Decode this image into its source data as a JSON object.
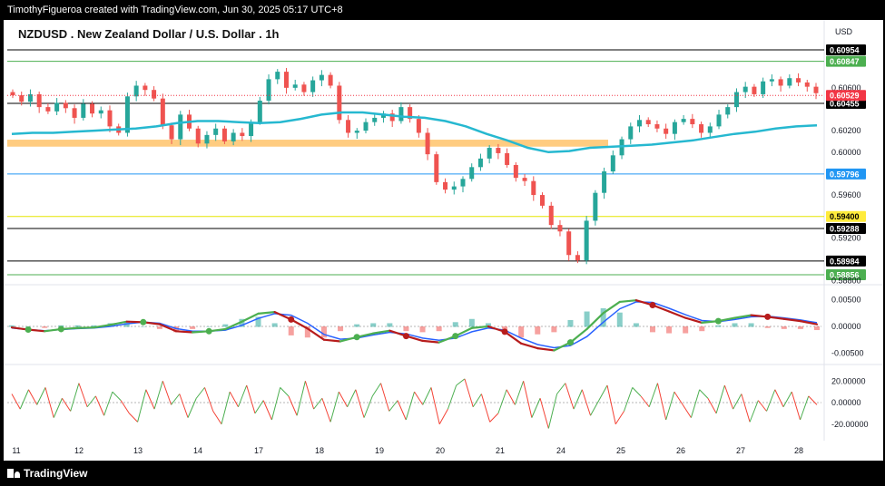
{
  "header": {
    "attribution": "TimothyFigueroa created with TradingView.com, Jun 30, 2025 05:17 UTC+8"
  },
  "footer": {
    "brand": "TradingView"
  },
  "chart_data": [
    {
      "type": "line",
      "title": "NZDUSD . New Zealand Dollar / U.S. Dollar . 1h",
      "currency": "USD",
      "x_ticks": [
        "11",
        "12",
        "13",
        "14",
        "17",
        "18",
        "19",
        "20",
        "21",
        "24",
        "25",
        "26",
        "27",
        "28"
      ],
      "y_ticks": [
        "0.60600",
        "0.60200",
        "0.60000",
        "0.59600",
        "0.59200",
        "0.58800"
      ],
      "ylim": [
        0.5878,
        0.6103
      ],
      "level_lines": [
        {
          "label": "0.60954",
          "value": 0.60954,
          "color": "#000000"
        },
        {
          "label": "0.60847",
          "value": 0.60847,
          "color": "#4caf50"
        },
        {
          "label": "0.60455",
          "value": 0.60455,
          "color": "#000000"
        },
        {
          "label": "0.59796",
          "value": 0.59796,
          "color": "#2196f3"
        },
        {
          "label": "0.59400",
          "value": 0.594,
          "color": "#e6e600"
        },
        {
          "label": "0.59288",
          "value": 0.59288,
          "color": "#000000"
        },
        {
          "label": "0.58984",
          "value": 0.58984,
          "color": "#000000"
        },
        {
          "label": "0.58856",
          "value": 0.58856,
          "color": "#4caf50"
        }
      ],
      "last_price": {
        "label": "0.60529",
        "value": 0.60529,
        "color": "#f23645"
      },
      "support_zone": {
        "from": 0.60051,
        "to": 0.60116,
        "color": "#ffcc80"
      },
      "close_path": [
        0.6053,
        0.6047,
        0.6054,
        0.6042,
        0.6038,
        0.6046,
        0.6041,
        0.6032,
        0.6045,
        0.6036,
        0.6039,
        0.6024,
        0.6018,
        0.6052,
        0.6062,
        0.6058,
        0.605,
        0.6025,
        0.6012,
        0.6035,
        0.6022,
        0.6008,
        0.6016,
        0.6022,
        0.601,
        0.6018,
        0.6015,
        0.6028,
        0.6048,
        0.6068,
        0.6075,
        0.606,
        0.6063,
        0.6056,
        0.6067,
        0.6072,
        0.6062,
        0.603,
        0.6018,
        0.602,
        0.6028,
        0.6032,
        0.6036,
        0.6029,
        0.6042,
        0.6031,
        0.6018,
        0.5998,
        0.5972,
        0.5965,
        0.5968,
        0.5975,
        0.5986,
        0.5994,
        0.6004,
        0.5999,
        0.5988,
        0.5976,
        0.5973,
        0.596,
        0.595,
        0.5932,
        0.5926,
        0.5904,
        0.5899,
        0.5936,
        0.5962,
        0.5982,
        0.5997,
        0.6012,
        0.6024,
        0.603,
        0.6026,
        0.6022,
        0.6017,
        0.6028,
        0.6031,
        0.6026,
        0.6018,
        0.6024,
        0.6035,
        0.6042,
        0.6056,
        0.6061,
        0.6054,
        0.6066,
        0.6068,
        0.6062,
        0.6069,
        0.6065,
        0.6061,
        0.6055
      ],
      "ema_path": [
        0.6017,
        0.6018,
        0.6018,
        0.6019,
        0.602,
        0.6021,
        0.6022,
        0.6024,
        0.6027,
        0.6029,
        0.6029,
        0.6028,
        0.6027,
        0.6028,
        0.6031,
        0.6035,
        0.6037,
        0.6037,
        0.6035,
        0.6033,
        0.6032,
        0.6029,
        0.6024,
        0.6017,
        0.6011,
        0.6004,
        0.6,
        0.6001,
        0.6004,
        0.6005,
        0.6006,
        0.6007,
        0.6009,
        0.6011,
        0.6014,
        0.6017,
        0.6019,
        0.6022,
        0.6024,
        0.6025
      ]
    },
    {
      "type": "line",
      "y_ticks": [
        "0.00500",
        "0.00000",
        "-0.00500"
      ],
      "ylim": [
        -0.0068,
        0.0068
      ],
      "series": [],
      "macd_path": [
        -0.0002,
        -0.0006,
        -0.0009,
        -0.0005,
        -0.0003,
        -0.0002,
        0.0003,
        0.0009,
        0.0008,
        0.0004,
        -0.0009,
        -0.0011,
        -0.0009,
        -0.0005,
        0.0009,
        0.0024,
        0.0027,
        0.0013,
        -0.0004,
        -0.0025,
        -0.0028,
        -0.002,
        -0.0013,
        -0.0008,
        -0.0018,
        -0.0027,
        -0.003,
        -0.0018,
        -0.0003,
        0.0,
        -0.001,
        -0.0032,
        -0.0041,
        -0.0045,
        -0.003,
        -0.0005,
        0.0025,
        0.0046,
        0.0049,
        0.004,
        0.0028,
        0.0016,
        0.0007,
        0.001,
        0.0016,
        0.0021,
        0.0018,
        0.0014,
        0.001,
        0.0004
      ],
      "signal_path": [
        -0.0003,
        -0.0006,
        -0.0008,
        -0.0006,
        -0.0004,
        -0.0003,
        0.0,
        0.0005,
        0.0008,
        0.0006,
        -0.0004,
        -0.0009,
        -0.0009,
        -0.0007,
        0.0002,
        0.0015,
        0.0024,
        0.0021,
        0.0006,
        -0.0015,
        -0.0024,
        -0.0022,
        -0.0016,
        -0.0011,
        -0.0014,
        -0.0022,
        -0.0026,
        -0.0022,
        -0.001,
        -0.0003,
        -0.0007,
        -0.0022,
        -0.0034,
        -0.004,
        -0.0036,
        -0.0019,
        0.0008,
        0.0033,
        0.0046,
        0.0045,
        0.0034,
        0.0022,
        0.0011,
        0.0009,
        0.0013,
        0.0018,
        0.0019,
        0.0016,
        0.0012,
        0.0007
      ]
    },
    {
      "type": "line",
      "y_ticks": [
        "20.00000",
        "0.00000",
        "-20.00000"
      ],
      "ylim": [
        -32,
        32
      ],
      "osc_path": [
        8,
        -6,
        12,
        -2,
        14,
        -14,
        4,
        -8,
        18,
        -4,
        6,
        -12,
        10,
        2,
        -10,
        -18,
        12,
        -6,
        20,
        -2,
        8,
        -14,
        4,
        14,
        -8,
        -20,
        10,
        -4,
        16,
        -10,
        2,
        -16,
        14,
        6,
        -12,
        20,
        -6,
        4,
        -18,
        10,
        -4,
        12,
        -14,
        6,
        18,
        -8,
        2,
        -16,
        10,
        -2,
        14,
        -20,
        -6,
        16,
        22,
        -4,
        8,
        -18,
        -10,
        12,
        -2,
        20,
        -14,
        4,
        -24,
        8,
        18,
        -6,
        12,
        -12,
        2,
        16,
        -20,
        -8,
        14,
        6,
        -4,
        18,
        -16,
        10,
        -2,
        -14,
        12,
        4,
        -10,
        16,
        -6,
        8,
        -18,
        2,
        -8,
        12,
        -4,
        10,
        -16,
        6,
        -2
      ]
    }
  ]
}
